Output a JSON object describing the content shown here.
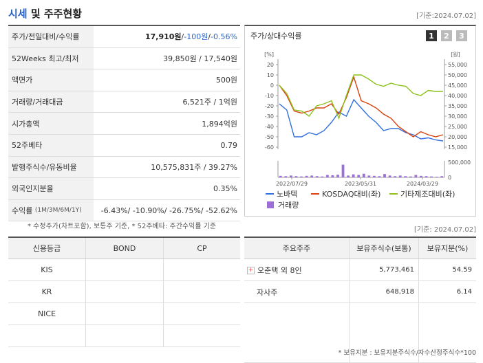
{
  "header": {
    "title_accent": "시세",
    "title_rest": "및 주주현황",
    "date": "[기준:2024.07.02]"
  },
  "summary": {
    "rows": [
      {
        "label": "주가/전일대비/수익률",
        "price": "17,910원",
        "sep1": " / ",
        "change": "-100원",
        "sep2": " / ",
        "rate": "-0.56%"
      },
      {
        "label": "52Weeks 최고/최저",
        "value": "39,850원 / 17,540원"
      },
      {
        "label": "액면가",
        "value": "500원"
      },
      {
        "label": "거래량/거래대금",
        "value": "6,521주 / 1억원"
      },
      {
        "label": "시가총액",
        "value": "1,894억원"
      },
      {
        "label": "52주베타",
        "value": "0.79"
      },
      {
        "label": "발행주식수/유동비율",
        "value": "10,575,831주 / 39.27%"
      },
      {
        "label": "외국인지분율",
        "value": "0.35%"
      },
      {
        "label": "수익률",
        "label_sub": "(1M/3M/6M/1Y)",
        "value": "-6.43%/ -10.90%/ -26.75%/ -52.62%"
      }
    ],
    "note": "* 수정주가(차트포함), 보통주 기준, * 52주베타: 주간수익률 기준"
  },
  "chart_panel": {
    "title": "주가/상대수익률",
    "tabs": [
      "1",
      "2",
      "3"
    ],
    "colors": {
      "stock": "#2f6ee0",
      "kosdaq": "#d9400e",
      "sector": "#8cc21a",
      "volume": "#9b6fd6"
    }
  },
  "chart_data": {
    "type": "line",
    "left_axis_unit": "[%]",
    "right_axis_unit": "[원]",
    "left_ticks": [
      20,
      10,
      0,
      -10,
      -20,
      -30,
      -40,
      -50,
      -60
    ],
    "right_ticks": [
      "55,000",
      "50,000",
      "45,000",
      "40,000",
      "35,000",
      "30,000",
      "25,000",
      "20,000",
      "15,000"
    ],
    "volume_ticks": [
      "500,000",
      "0"
    ],
    "x_labels": [
      "2022/07/29",
      "2023/05/31",
      "2024/03/29"
    ],
    "ylim_left": [
      -60,
      20
    ],
    "ylim_right": [
      15000,
      55000
    ],
    "volume_max": 500000,
    "series": [
      {
        "name": "노바텍",
        "axis": "right",
        "values": [
          36000,
          33000,
          20000,
          20000,
          22000,
          21000,
          23000,
          27000,
          32000,
          30000,
          38000,
          34000,
          30000,
          27000,
          23000,
          24000,
          24000,
          22000,
          21000,
          19000,
          19500,
          18500,
          18000
        ]
      },
      {
        "name": "KOSDAQ대비(좌)",
        "axis": "left",
        "values": [
          0,
          -10,
          -25,
          -27,
          -25,
          -22,
          -22,
          -18,
          -28,
          -12,
          8,
          -15,
          -18,
          -22,
          -28,
          -32,
          -40,
          -45,
          -50,
          -45,
          -48,
          -50,
          -48
        ]
      },
      {
        "name": "기타제조대비(좌)",
        "axis": "left",
        "values": [
          0,
          -8,
          -24,
          -25,
          -30,
          -20,
          -18,
          -15,
          -32,
          -10,
          10,
          10,
          6,
          1,
          -1,
          2,
          0,
          -1,
          -8,
          -10,
          -5,
          -6,
          -6
        ]
      }
    ],
    "volume": {
      "name": "거래량",
      "values": [
        50000,
        40000,
        60000,
        40000,
        30000,
        50000,
        60000,
        40000,
        30000,
        80000,
        70000,
        90000,
        420000,
        60000,
        100000,
        80000,
        120000,
        60000,
        50000,
        40000,
        110000,
        60000,
        40000,
        60000,
        40000,
        30000,
        80000,
        50000,
        40000,
        30000,
        20000,
        40000
      ]
    }
  },
  "credit": {
    "headers": [
      "신용등급",
      "BOND",
      "CP"
    ],
    "rows": [
      [
        "KIS",
        "",
        ""
      ],
      [
        "KR",
        "",
        ""
      ],
      [
        "NICE",
        "",
        ""
      ],
      [
        "",
        "",
        ""
      ]
    ]
  },
  "holders": {
    "date": "[기준: 2024.07.02]",
    "headers": [
      "주요주주",
      "보유주식수(보통)",
      "보유지분(%)"
    ],
    "rows": [
      {
        "name": "오춘택 외 8인",
        "shares": "5,773,461",
        "pct": "54.59"
      },
      {
        "name": "자사주",
        "shares": "648,918",
        "pct": "6.14"
      },
      {
        "name": "",
        "shares": "",
        "pct": ""
      }
    ],
    "plus_symbol": "+",
    "note": "* 보유지분 : 보유지분주식수/자수산정주식수*100"
  }
}
